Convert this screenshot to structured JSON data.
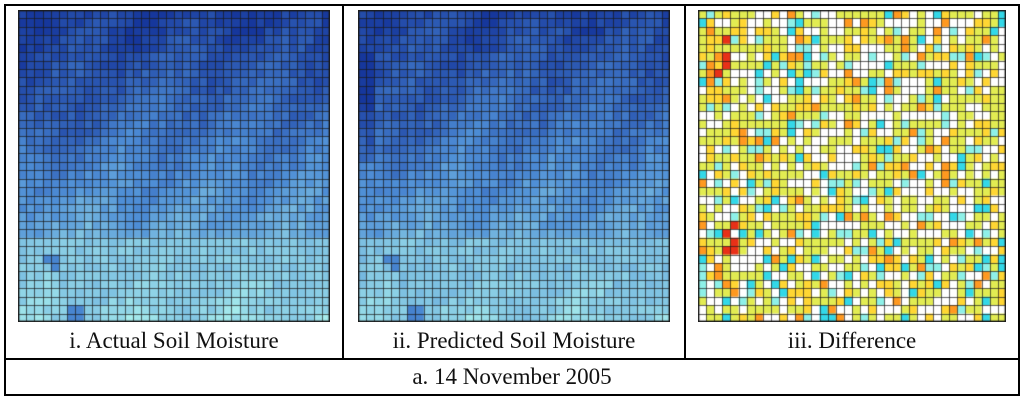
{
  "panels": [
    {
      "caption": "i. Actual Soil Moisture",
      "map_type": "actual"
    },
    {
      "caption": "ii. Predicted Soil Moisture",
      "map_type": "predicted"
    },
    {
      "caption": "iii. Difference",
      "map_type": "difference"
    }
  ],
  "figure_caption": "a. 14 November 2005",
  "grid": {
    "rows": 37,
    "cols": 38
  },
  "colors": {
    "moisture_low": "#a6ecec",
    "moisture_mid": "#4e8ed6",
    "moisture_high": "#16379c",
    "diff_zero": "#ffffff",
    "diff_small": "#e2ec52",
    "diff_medium": "#ffd633",
    "diff_large": "#ff9920",
    "diff_extreme": "#e83018",
    "diff_negative": "#33d8e8",
    "diff_negative_light": "#8ef0e8",
    "grid_line": "#1a1a1a"
  }
}
